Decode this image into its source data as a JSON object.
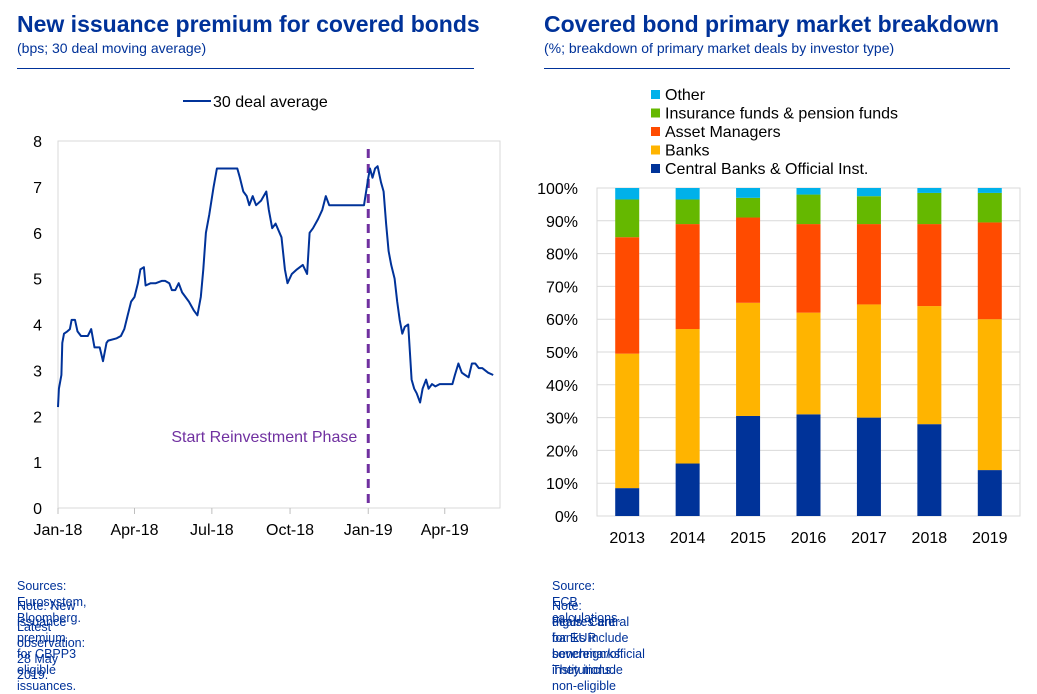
{
  "left": {
    "title": "New issuance premium for covered bonds",
    "subtitle": "(bps; 30 deal moving average)",
    "sources": "Sources: Eurosystem, Bloomberg.",
    "note": "Note: New issuance premium for CBPP3 eligible issuances.",
    "latest": "Latest observation: 28 May 2019."
  },
  "right": {
    "title": "Covered bond primary market breakdown",
    "subtitle": "(%; breakdown of primary market deals by investor type)",
    "source": "Source: ECB calculations.",
    "note_line1": "Note: Figures are for EUR benchmarks. They include non-eligible",
    "note_line2": "deals. Central banks include sovereign/official institutions."
  },
  "colors": {
    "title_blue": "#003299",
    "line": "#003299",
    "dashed_marker": "#7030A0",
    "central_banks": "#003399",
    "banks": "#FFB400",
    "asset_managers": "#FF4B00",
    "insurance": "#65B800",
    "other": "#00B1EA"
  },
  "chart_data": [
    {
      "type": "line",
      "title": "New issuance premium for covered bonds",
      "ylabel": "",
      "ylim": [
        0,
        8
      ],
      "yticks": [
        "0",
        "1",
        "2",
        "3",
        "4",
        "5",
        "6",
        "7",
        "8"
      ],
      "xticks": [
        "Jan-18",
        "Apr-18",
        "Jul-18",
        "Oct-18",
        "Jan-19",
        "Apr-19"
      ],
      "legend_position": "top-center",
      "annotation": {
        "text": "Start Reinvestment Phase",
        "x": "2019-01-01"
      },
      "series": [
        {
          "name": "30 deal average",
          "points": [
            [
              "2018-01-01",
              2.2
            ],
            [
              "2018-01-02",
              2.6
            ],
            [
              "2018-01-05",
              2.9
            ],
            [
              "2018-01-06",
              3.6
            ],
            [
              "2018-01-08",
              3.8
            ],
            [
              "2018-01-12",
              3.85
            ],
            [
              "2018-01-15",
              3.9
            ],
            [
              "2018-01-17",
              4.1
            ],
            [
              "2018-01-21",
              4.1
            ],
            [
              "2018-01-24",
              3.85
            ],
            [
              "2018-01-28",
              3.75
            ],
            [
              "2018-02-05",
              3.75
            ],
            [
              "2018-02-09",
              3.9
            ],
            [
              "2018-02-13",
              3.5
            ],
            [
              "2018-02-19",
              3.5
            ],
            [
              "2018-02-23",
              3.2
            ],
            [
              "2018-02-27",
              3.6
            ],
            [
              "2018-03-01",
              3.65
            ],
            [
              "2018-03-11",
              3.7
            ],
            [
              "2018-03-16",
              3.75
            ],
            [
              "2018-03-20",
              3.9
            ],
            [
              "2018-03-24",
              4.2
            ],
            [
              "2018-03-28",
              4.5
            ],
            [
              "2018-04-01",
              4.6
            ],
            [
              "2018-04-05",
              4.9
            ],
            [
              "2018-04-08",
              5.2
            ],
            [
              "2018-04-12",
              5.25
            ],
            [
              "2018-04-14",
              4.85
            ],
            [
              "2018-04-20",
              4.9
            ],
            [
              "2018-04-26",
              4.9
            ],
            [
              "2018-05-03",
              4.95
            ],
            [
              "2018-05-07",
              4.95
            ],
            [
              "2018-05-12",
              4.9
            ],
            [
              "2018-05-15",
              4.75
            ],
            [
              "2018-05-19",
              4.75
            ],
            [
              "2018-05-23",
              4.9
            ],
            [
              "2018-05-27",
              4.7
            ],
            [
              "2018-05-31",
              4.6
            ],
            [
              "2018-06-04",
              4.5
            ],
            [
              "2018-06-10",
              4.3
            ],
            [
              "2018-06-14",
              4.2
            ],
            [
              "2018-06-18",
              4.6
            ],
            [
              "2018-06-21",
              5.2
            ],
            [
              "2018-06-24",
              6.0
            ],
            [
              "2018-06-28",
              6.4
            ],
            [
              "2018-07-03",
              7.0
            ],
            [
              "2018-07-07",
              7.4
            ],
            [
              "2018-07-14",
              7.4
            ],
            [
              "2018-07-25",
              7.4
            ],
            [
              "2018-07-31",
              7.4
            ],
            [
              "2018-08-03",
              7.2
            ],
            [
              "2018-08-07",
              6.9
            ],
            [
              "2018-08-11",
              6.8
            ],
            [
              "2018-08-14",
              6.6
            ],
            [
              "2018-08-18",
              6.8
            ],
            [
              "2018-08-22",
              6.6
            ],
            [
              "2018-08-28",
              6.7
            ],
            [
              "2018-09-03",
              6.9
            ],
            [
              "2018-09-06",
              6.5
            ],
            [
              "2018-09-10",
              6.1
            ],
            [
              "2018-09-14",
              6.2
            ],
            [
              "2018-09-21",
              5.9
            ],
            [
              "2018-09-25",
              5.2
            ],
            [
              "2018-09-28",
              4.9
            ],
            [
              "2018-10-03",
              5.1
            ],
            [
              "2018-10-09",
              5.2
            ],
            [
              "2018-10-16",
              5.3
            ],
            [
              "2018-10-21",
              5.1
            ],
            [
              "2018-10-24",
              6.0
            ],
            [
              "2018-10-28",
              6.1
            ],
            [
              "2018-11-03",
              6.3
            ],
            [
              "2018-11-08",
              6.5
            ],
            [
              "2018-11-12",
              6.8
            ],
            [
              "2018-11-16",
              6.6
            ],
            [
              "2018-11-24",
              6.6
            ],
            [
              "2018-12-05",
              6.6
            ],
            [
              "2018-12-17",
              6.6
            ],
            [
              "2018-12-27",
              6.6
            ],
            [
              "2019-01-01",
              7.2
            ],
            [
              "2019-01-03",
              7.4
            ],
            [
              "2019-01-06",
              7.2
            ],
            [
              "2019-01-09",
              7.4
            ],
            [
              "2019-01-12",
              7.45
            ],
            [
              "2019-01-16",
              7.1
            ],
            [
              "2019-01-19",
              6.9
            ],
            [
              "2019-01-22",
              6.2
            ],
            [
              "2019-01-25",
              5.6
            ],
            [
              "2019-01-28",
              5.3
            ],
            [
              "2019-02-01",
              5.0
            ],
            [
              "2019-02-04",
              4.5
            ],
            [
              "2019-02-07",
              4.1
            ],
            [
              "2019-02-10",
              3.8
            ],
            [
              "2019-02-13",
              3.95
            ],
            [
              "2019-02-17",
              4.0
            ],
            [
              "2019-02-19",
              3.4
            ],
            [
              "2019-02-21",
              2.8
            ],
            [
              "2019-02-24",
              2.6
            ],
            [
              "2019-02-27",
              2.5
            ],
            [
              "2019-03-03",
              2.3
            ],
            [
              "2019-03-06",
              2.6
            ],
            [
              "2019-03-10",
              2.8
            ],
            [
              "2019-03-13",
              2.6
            ],
            [
              "2019-03-17",
              2.7
            ],
            [
              "2019-03-21",
              2.65
            ],
            [
              "2019-03-26",
              2.7
            ],
            [
              "2019-04-01",
              2.7
            ],
            [
              "2019-04-10",
              2.7
            ],
            [
              "2019-04-13",
              2.9
            ],
            [
              "2019-04-17",
              3.15
            ],
            [
              "2019-04-21",
              2.95
            ],
            [
              "2019-04-25",
              2.9
            ],
            [
              "2019-04-29",
              2.85
            ],
            [
              "2019-05-03",
              3.15
            ],
            [
              "2019-05-07",
              3.15
            ],
            [
              "2019-05-11",
              3.05
            ],
            [
              "2019-05-15",
              3.05
            ],
            [
              "2019-05-22",
              2.95
            ],
            [
              "2019-05-28",
              2.9
            ]
          ]
        }
      ]
    },
    {
      "type": "bar",
      "stacked": true,
      "title": "Covered bond primary market breakdown",
      "categories": [
        "2013",
        "2014",
        "2015",
        "2016",
        "2017",
        "2018",
        "2019"
      ],
      "ylim": [
        0,
        100
      ],
      "yticks": [
        "0%",
        "10%",
        "20%",
        "30%",
        "40%",
        "50%",
        "60%",
        "70%",
        "80%",
        "90%",
        "100%"
      ],
      "grid": true,
      "legend_position": "top-left",
      "legend_order": [
        "Other",
        "Insurance funds & pension funds",
        "Asset Managers",
        "Banks",
        "Central Banks & Official Inst."
      ],
      "series": [
        {
          "name": "Central Banks & Official Inst.",
          "color": "#003399",
          "values": [
            8.5,
            16,
            30.5,
            31,
            30,
            28,
            14
          ]
        },
        {
          "name": "Banks",
          "color": "#FFB400",
          "values": [
            41,
            41,
            34.5,
            31,
            34.5,
            36,
            46
          ]
        },
        {
          "name": "Asset Managers",
          "color": "#FF4B00",
          "values": [
            35.5,
            32,
            26,
            27,
            24.5,
            25,
            29.5
          ]
        },
        {
          "name": "Insurance funds & pension funds",
          "color": "#65B800",
          "values": [
            11.5,
            7.5,
            6,
            9,
            8.5,
            9.5,
            9
          ]
        },
        {
          "name": "Other",
          "color": "#00B1EA",
          "values": [
            3.5,
            3.5,
            3,
            2,
            2.5,
            1.5,
            1.5
          ]
        }
      ]
    }
  ]
}
